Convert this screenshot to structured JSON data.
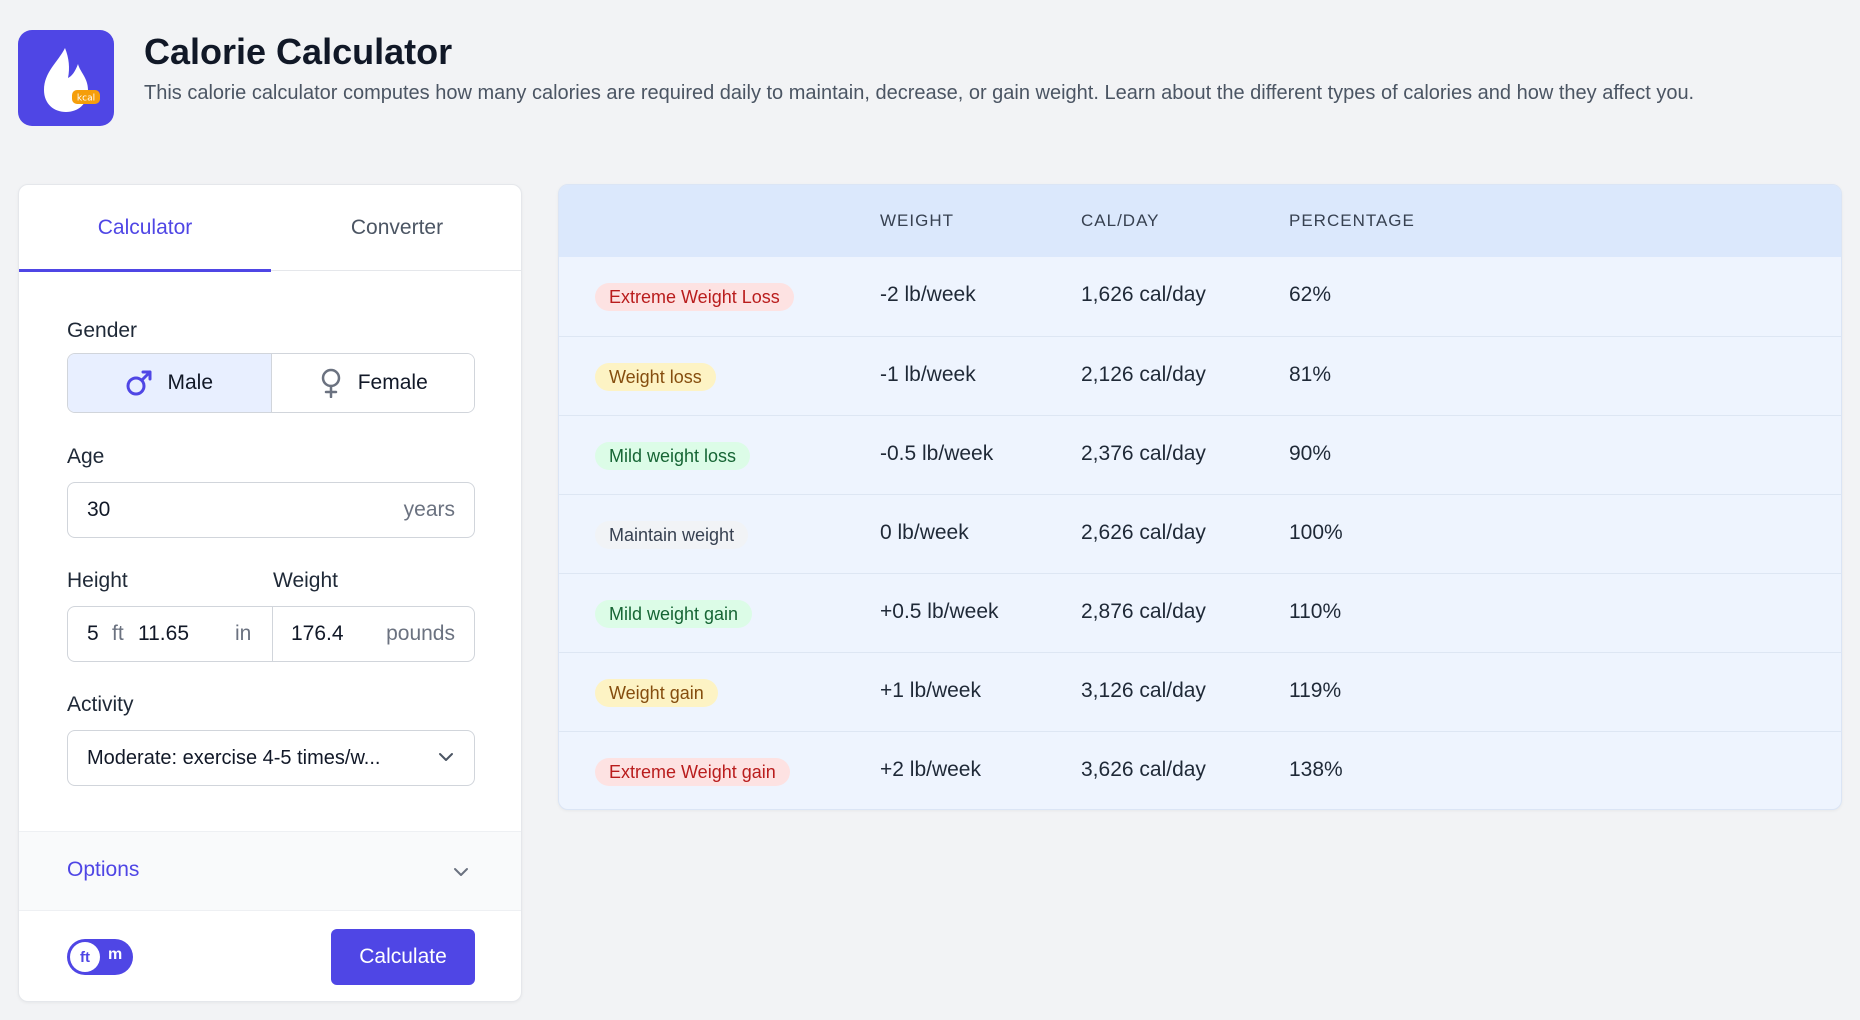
{
  "header": {
    "title": "Calorie Calculator",
    "description": "This calorie calculator computes how many calories are required daily to maintain, decrease, or gain weight. Learn about the different types of calories and how they affect you.",
    "logo_badge": "kcal"
  },
  "tabs": [
    {
      "label": "Calculator",
      "active": true
    },
    {
      "label": "Converter",
      "active": false
    }
  ],
  "form": {
    "gender_label": "Gender",
    "gender_options": [
      {
        "label": "Male",
        "icon": "male-icon",
        "selected": true
      },
      {
        "label": "Female",
        "icon": "female-icon",
        "selected": false
      }
    ],
    "age_label": "Age",
    "age_value": "30",
    "age_unit": "years",
    "height_label": "Height",
    "height_ft": "5",
    "height_ft_unit": "ft",
    "height_in": "11.65",
    "height_in_unit": "in",
    "weight_label": "Weight",
    "weight_value": "176.4",
    "weight_unit": "pounds",
    "activity_label": "Activity",
    "activity_value": "Moderate: exercise 4-5 times/w...",
    "options_label": "Options",
    "unit_toggle": {
      "left": "ft",
      "right": "m",
      "selected": "ft"
    },
    "calculate_label": "Calculate"
  },
  "results": {
    "columns": [
      "",
      "WEIGHT",
      "CAL/DAY",
      "PERCENTAGE"
    ],
    "rows": [
      {
        "goal": "Extreme Weight Loss",
        "weight": "-2 lb/week",
        "cal": "1,626 cal/day",
        "pct": "62%",
        "tone": "red"
      },
      {
        "goal": "Weight loss",
        "weight": "-1 lb/week",
        "cal": "2,126 cal/day",
        "pct": "81%",
        "tone": "yellow"
      },
      {
        "goal": "Mild weight loss",
        "weight": "-0.5 lb/week",
        "cal": "2,376 cal/day",
        "pct": "90%",
        "tone": "green"
      },
      {
        "goal": "Maintain weight",
        "weight": "0 lb/week",
        "cal": "2,626 cal/day",
        "pct": "100%",
        "tone": "gray"
      },
      {
        "goal": "Mild weight gain",
        "weight": "+0.5 lb/week",
        "cal": "2,876 cal/day",
        "pct": "110%",
        "tone": "green"
      },
      {
        "goal": "Weight gain",
        "weight": "+1 lb/week",
        "cal": "3,126 cal/day",
        "pct": "119%",
        "tone": "yellow"
      },
      {
        "goal": "Extreme Weight gain",
        "weight": "+2 lb/week",
        "cal": "3,626 cal/day",
        "pct": "138%",
        "tone": "red"
      }
    ]
  },
  "colors": {
    "accent": "#4f46e5",
    "badge_red_bg": "#fde2e2",
    "badge_red_fg": "#b91c1c",
    "badge_yellow_bg": "#fdf3c4",
    "badge_yellow_fg": "#854d0e",
    "badge_green_bg": "#dcfce7",
    "badge_green_fg": "#166534",
    "badge_gray_bg": "#f1f3f6",
    "badge_gray_fg": "#374151"
  }
}
